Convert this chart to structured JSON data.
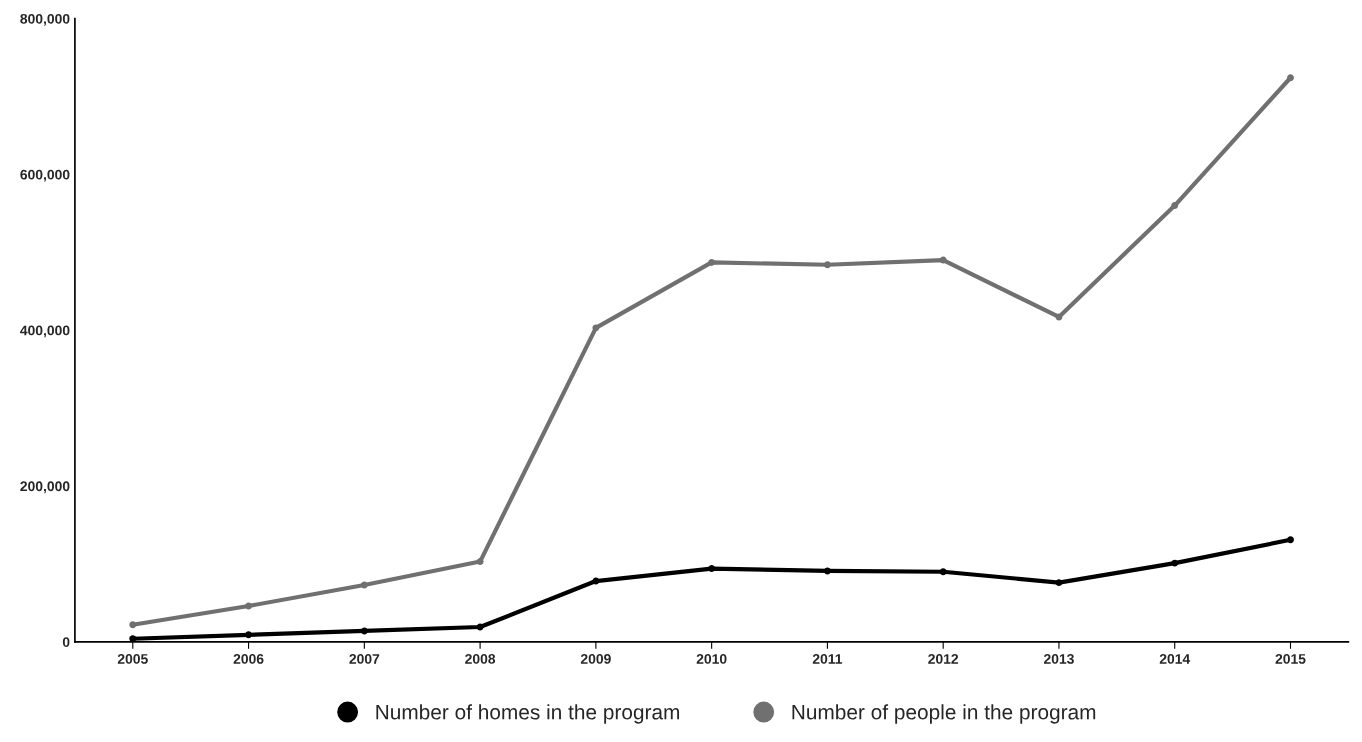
{
  "chart_data": {
    "type": "line",
    "categories": [
      "2005",
      "2006",
      "2007",
      "2008",
      "2009",
      "2010",
      "2011",
      "2012",
      "2013",
      "2014",
      "2015"
    ],
    "series": [
      {
        "name": "Number of homes in the program",
        "color": "#000000",
        "values": [
          4000,
          9000,
          14000,
          19000,
          78000,
          94000,
          91000,
          90000,
          76000,
          101000,
          131000
        ]
      },
      {
        "name": "Number of people in the program",
        "color": "#707070",
        "values": [
          22000,
          46000,
          73000,
          103000,
          403000,
          487000,
          484000,
          490000,
          417000,
          560000,
          724000
        ]
      }
    ],
    "ylim": [
      0,
      800000
    ],
    "yticks": [
      {
        "value": 0,
        "label": "0"
      },
      {
        "value": 200000,
        "label": "200,000"
      },
      {
        "value": 400000,
        "label": "400,000"
      },
      {
        "value": 600000,
        "label": "600,000"
      },
      {
        "value": 800000,
        "label": "800,000"
      }
    ],
    "grid": false,
    "legend": "bottom",
    "marker": "circle",
    "line_style": "solid"
  }
}
